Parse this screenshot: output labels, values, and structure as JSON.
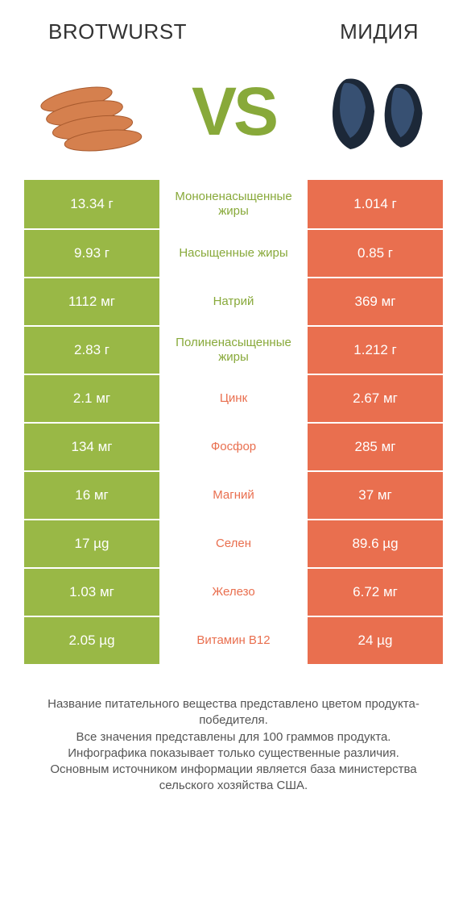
{
  "titles": {
    "left": "BROTWURST",
    "right": "МИДИЯ"
  },
  "vs_text": "VS",
  "colors": {
    "green": "#99b846",
    "orange": "#e96f4f",
    "green_text": "#88a93a",
    "orange_text": "#e96f4f",
    "row_border": "#ffffff"
  },
  "table": {
    "rows": [
      {
        "left": "13.34 г",
        "label": "Мононенасыщенные жиры",
        "right": "1.014 г",
        "winner": "left"
      },
      {
        "left": "9.93 г",
        "label": "Насыщенные жиры",
        "right": "0.85 г",
        "winner": "left"
      },
      {
        "left": "1112 мг",
        "label": "Натрий",
        "right": "369 мг",
        "winner": "left"
      },
      {
        "left": "2.83 г",
        "label": "Полиненасыщенные жиры",
        "right": "1.212 г",
        "winner": "left"
      },
      {
        "left": "2.1 мг",
        "label": "Цинк",
        "right": "2.67 мг",
        "winner": "right"
      },
      {
        "left": "134 мг",
        "label": "Фосфор",
        "right": "285 мг",
        "winner": "right"
      },
      {
        "left": "16 мг",
        "label": "Магний",
        "right": "37 мг",
        "winner": "right"
      },
      {
        "left": "17 µg",
        "label": "Селен",
        "right": "89.6 µg",
        "winner": "right"
      },
      {
        "left": "1.03 мг",
        "label": "Железо",
        "right": "6.72 мг",
        "winner": "right"
      },
      {
        "left": "2.05 µg",
        "label": "Витамин B12",
        "right": "24 µg",
        "winner": "right"
      }
    ]
  },
  "footer_lines": [
    "Название питательного вещества представлено цветом продукта-победителя.",
    "Все значения представлены для 100 граммов продукта.",
    "Инфографика показывает только существенные различия.",
    "Основным источником информации является база министерства сельского хозяйства США."
  ]
}
